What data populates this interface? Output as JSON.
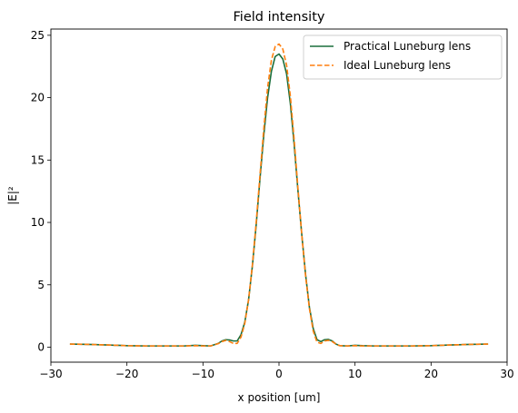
{
  "chart_data": {
    "type": "line",
    "title": "Field intensity",
    "xlabel": "x position [um]",
    "ylabel": "|E|²",
    "xlim": [
      -30,
      30
    ],
    "ylim": [
      -1.2,
      25.5
    ],
    "xticks": [
      -30,
      -20,
      -10,
      0,
      10,
      20,
      30
    ],
    "yticks": [
      0,
      5,
      10,
      15,
      20,
      25
    ],
    "grid": false,
    "legend_position": "top-right",
    "series": [
      {
        "name": "Practical Luneburg lens",
        "color": "#1a6e3c",
        "style": "solid",
        "x": [
          -27.5,
          -25,
          -22.5,
          -20,
          -17.5,
          -15,
          -12.5,
          -11,
          -10,
          -9,
          -8,
          -7.5,
          -7,
          -6.5,
          -6,
          -5.5,
          -5,
          -4.5,
          -4,
          -3.5,
          -3,
          -2.5,
          -2,
          -1.5,
          -1,
          -0.5,
          0,
          0.5,
          1,
          1.5,
          2,
          2.5,
          3,
          3.5,
          4,
          4.5,
          5,
          5.5,
          6,
          6.5,
          7,
          7.5,
          8,
          9,
          10,
          11,
          12.5,
          15,
          17.5,
          20,
          22.5,
          25,
          27.5
        ],
        "y": [
          0.25,
          0.22,
          0.18,
          0.12,
          0.1,
          0.1,
          0.1,
          0.15,
          0.12,
          0.1,
          0.3,
          0.5,
          0.6,
          0.58,
          0.5,
          0.5,
          1.0,
          2.0,
          3.8,
          6.5,
          9.8,
          13.5,
          17.0,
          20.0,
          22.1,
          23.3,
          23.5,
          23.1,
          21.9,
          19.5,
          16.2,
          12.5,
          9.0,
          5.8,
          3.2,
          1.5,
          0.6,
          0.45,
          0.6,
          0.62,
          0.5,
          0.25,
          0.12,
          0.1,
          0.15,
          0.12,
          0.1,
          0.1,
          0.1,
          0.12,
          0.18,
          0.22,
          0.25
        ]
      },
      {
        "name": "Ideal Luneburg lens",
        "color": "#ff7f0e",
        "style": "dashed",
        "x": [
          -27.5,
          -25,
          -22.5,
          -20,
          -17.5,
          -15,
          -12.5,
          -11,
          -10,
          -9,
          -8,
          -7.5,
          -7,
          -6.5,
          -6,
          -5.5,
          -5,
          -4.5,
          -4,
          -3.5,
          -3,
          -2.5,
          -2,
          -1.5,
          -1,
          -0.5,
          0,
          0.5,
          1,
          1.5,
          2,
          2.5,
          3,
          3.5,
          4,
          4.5,
          5,
          5.5,
          6,
          6.5,
          7,
          7.5,
          8,
          9,
          10,
          11,
          12.5,
          15,
          17.5,
          20,
          22.5,
          25,
          27.5
        ],
        "y": [
          0.25,
          0.22,
          0.18,
          0.12,
          0.1,
          0.1,
          0.1,
          0.12,
          0.1,
          0.1,
          0.28,
          0.45,
          0.55,
          0.45,
          0.3,
          0.3,
          0.8,
          1.9,
          3.8,
          6.6,
          10.0,
          13.8,
          17.5,
          20.8,
          23.0,
          24.1,
          24.3,
          23.9,
          22.6,
          20.1,
          16.6,
          12.7,
          9.0,
          5.7,
          3.1,
          1.3,
          0.4,
          0.3,
          0.5,
          0.55,
          0.45,
          0.25,
          0.12,
          0.1,
          0.12,
          0.1,
          0.1,
          0.1,
          0.1,
          0.12,
          0.18,
          0.22,
          0.25
        ]
      }
    ]
  }
}
